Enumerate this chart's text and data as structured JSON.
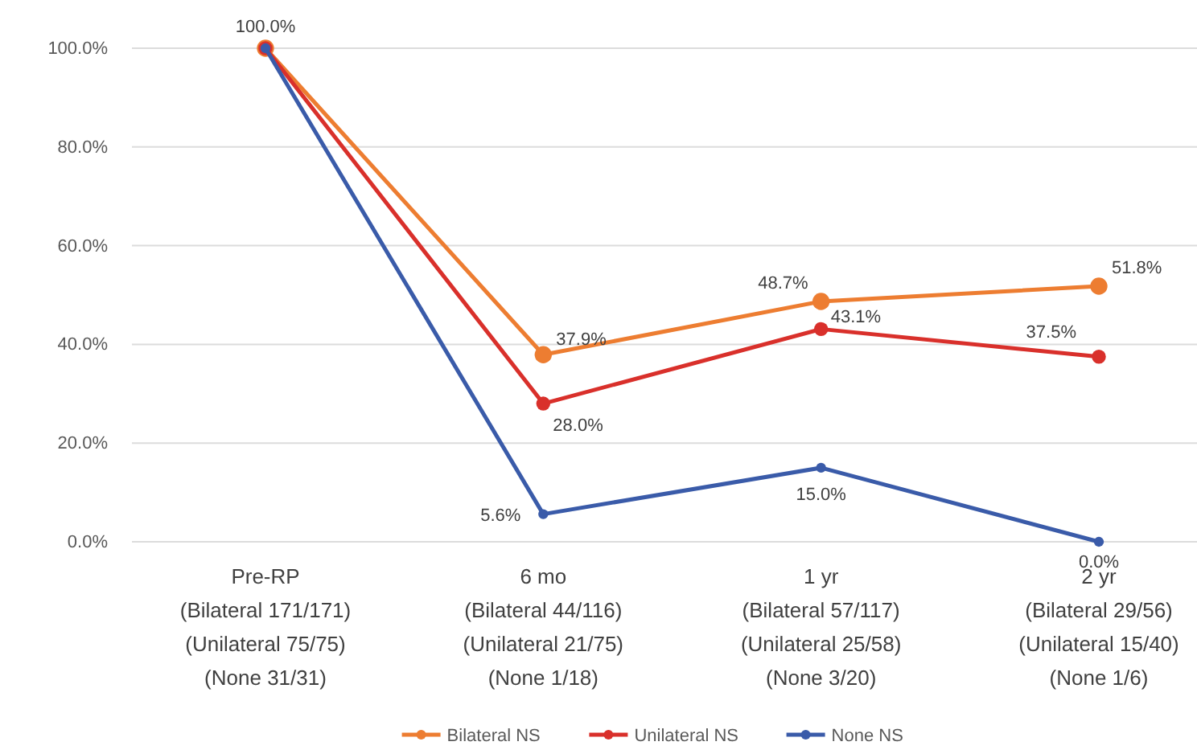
{
  "chart_data": {
    "type": "line",
    "categories": [
      "Pre-RP\n(Bilateral 171/171)\n(Unilateral 75/75)\n(None 31/31)",
      "6 mo\n(Bilateral 44/116)\n(Unilateral 21/75)\n(None 1/18)",
      "1 yr\n(Bilateral 57/117)\n(Unilateral 25/58)\n(None 3/20)",
      "2 yr\n(Bilateral 29/56)\n(Unilateral 15/40)\n(None 1/6)"
    ],
    "series": [
      {
        "name": "Bilateral NS",
        "color": "#ed7d31",
        "values": [
          100.0,
          37.9,
          48.7,
          51.8
        ],
        "value_labels": [
          "100.0%",
          "37.9%",
          "48.7%",
          "51.8%"
        ]
      },
      {
        "name": "Unilateral NS",
        "color": "#d9302b",
        "values": [
          100.0,
          28.0,
          43.1,
          37.5
        ],
        "value_labels": [
          null,
          "28.0%",
          "43.1%",
          "37.5%"
        ]
      },
      {
        "name": "None NS",
        "color": "#3a5ba9",
        "values": [
          100.0,
          5.6,
          15.0,
          0.0
        ],
        "value_labels": [
          null,
          "5.6%",
          "15.0%",
          "0.0%"
        ]
      }
    ],
    "ylim": [
      0,
      100
    ],
    "yticks": [
      {
        "value": 0,
        "label": "0.0%"
      },
      {
        "value": 20,
        "label": "20.0%"
      },
      {
        "value": 40,
        "label": "40.0%"
      },
      {
        "value": 60,
        "label": "60.0%"
      },
      {
        "value": 80,
        "label": "80.0%"
      },
      {
        "value": 100,
        "label": "100.0%"
      }
    ],
    "grid": "y",
    "legend": "bottom",
    "marker": "circle",
    "line_style": "solid"
  }
}
